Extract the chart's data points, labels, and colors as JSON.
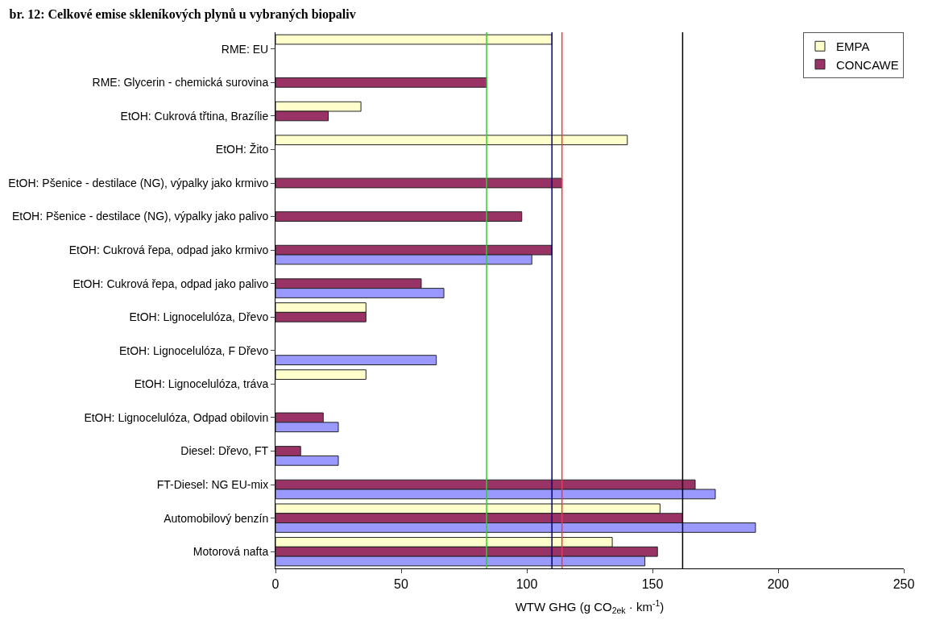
{
  "chart_data": {
    "type": "bar",
    "orientation": "horizontal",
    "title": "br. 12: Celkové emise skleníkových plynů u vybraných biopaliv",
    "xlabel": "WTW GHG (g CO$_{2ek}$ · km$^{-1}$)",
    "categories": [
      "RME: EU",
      "RME: Glycerin - chemická surovina",
      "EtOH: Cukrová třtina, Brazílie",
      "EtOH: Žito",
      "EtOH: Pšenice - destilace (NG), výpalky jako krmivo",
      "EtOH: Pšenice - destilace (NG), výpalky jako palivo",
      "EtOH: Cukrová řepa, odpad jako krmivo",
      "EtOH: Cukrová řepa, odpad jako palivo",
      "EtOH: Lignocelulóza, Dřevo",
      "EtOH: Lignocelulóza, F Dřevo",
      "EtOH: Lignocelulóza, tráva",
      "EtOH: Lignocelulóza, Odpad obilovin",
      "Diesel: Dřevo, FT",
      "FT-Diesel: NG EU-mix",
      "Automobilový benzín",
      "Motorová nafta"
    ],
    "series": [
      {
        "name": "EMPA",
        "color": "#ffffcc",
        "values": [
          110,
          null,
          34,
          140,
          null,
          null,
          null,
          null,
          36,
          null,
          36,
          null,
          null,
          null,
          153,
          134
        ]
      },
      {
        "name": "CONCAWE",
        "color": "#993366",
        "values": [
          null,
          84,
          21,
          null,
          114,
          98,
          110,
          58,
          36,
          null,
          null,
          19,
          10,
          167,
          162,
          152
        ]
      },
      {
        "color": "#9999ff",
        "values": [
          null,
          null,
          null,
          null,
          null,
          null,
          102,
          67,
          null,
          64,
          null,
          25,
          25,
          175,
          191,
          147
        ]
      }
    ],
    "xlim": [
      0,
      250
    ],
    "xticks": [
      0,
      50,
      100,
      150,
      200,
      250
    ],
    "ref_lines": [
      {
        "axis": "x",
        "value": 84,
        "color": "#33cc33"
      },
      {
        "axis": "x",
        "value": 114,
        "color": "#ff3333"
      },
      {
        "axis": "x",
        "value": 110,
        "color": "#000080"
      },
      {
        "axis": "x",
        "value": 162,
        "color": "#000000"
      }
    ],
    "legend": "top right"
  }
}
